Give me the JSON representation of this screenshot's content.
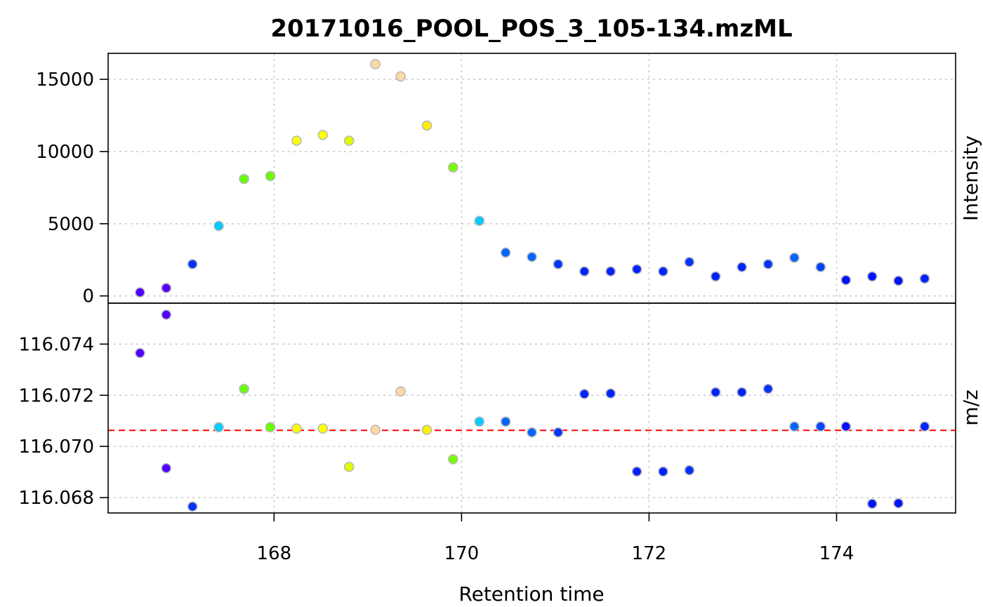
{
  "chart_data": {
    "type": "scatter",
    "title": "20171016_POOL_POS_3_105-134.mzML",
    "xlabel": "Retention time",
    "xlim": [
      166.23,
      175.27
    ],
    "x_ticks": [
      {
        "value": 168,
        "label": "168"
      },
      {
        "value": 170,
        "label": "170"
      },
      {
        "value": 172,
        "label": "172"
      },
      {
        "value": 174,
        "label": "174"
      }
    ],
    "panels": [
      {
        "ylabel": "Intensity",
        "ylim": [
          -500,
          16800
        ],
        "y_ticks": [
          {
            "value": 0,
            "label": "0"
          },
          {
            "value": 5000,
            "label": "5000"
          },
          {
            "value": 10000,
            "label": "10000"
          },
          {
            "value": 15000,
            "label": "15000"
          }
        ]
      },
      {
        "ylabel": "m/z",
        "ylim": [
          116.0674,
          116.0756
        ],
        "y_ticks": [
          {
            "value": 116.068,
            "label": "116.068"
          },
          {
            "value": 116.07,
            "label": "116.070"
          },
          {
            "value": 116.072,
            "label": "116.072"
          },
          {
            "value": 116.074,
            "label": "116.074"
          }
        ],
        "reference_line": {
          "value": 116.07063,
          "color": "#ff0000",
          "style": "dashed"
        }
      }
    ],
    "points": [
      {
        "rt": 166.57,
        "intensity": 250,
        "mz": 116.07365,
        "color": "#5000ff"
      },
      {
        "rt": 166.85,
        "intensity": 550,
        "mz": 116.07515,
        "color": "#5000ff"
      },
      {
        "rt": 166.85,
        "intensity": 550,
        "mz": 116.06915,
        "color": "#5000ff"
      },
      {
        "rt": 167.13,
        "intensity": 2200,
        "mz": 116.06765,
        "color": "#0033ff"
      },
      {
        "rt": 167.41,
        "intensity": 4850,
        "mz": 116.07075,
        "color": "#00ccff"
      },
      {
        "rt": 167.68,
        "intensity": 8100,
        "mz": 116.07225,
        "color": "#66ff00"
      },
      {
        "rt": 167.96,
        "intensity": 8300,
        "mz": 116.07075,
        "color": "#66ff00"
      },
      {
        "rt": 168.24,
        "intensity": 10750,
        "mz": 116.0707,
        "color": "#ffff00"
      },
      {
        "rt": 168.52,
        "intensity": 11150,
        "mz": 116.0707,
        "color": "#ffff00"
      },
      {
        "rt": 168.8,
        "intensity": 10750,
        "mz": 116.0692,
        "color": "#ddff00"
      },
      {
        "rt": 169.08,
        "intensity": 16050,
        "mz": 116.07065,
        "color": "#ffd8a8"
      },
      {
        "rt": 169.35,
        "intensity": 15200,
        "mz": 116.07215,
        "color": "#ffd8a8"
      },
      {
        "rt": 169.63,
        "intensity": 11800,
        "mz": 116.07065,
        "color": "#fff000"
      },
      {
        "rt": 169.91,
        "intensity": 8900,
        "mz": 116.0695,
        "color": "#77ff00"
      },
      {
        "rt": 170.19,
        "intensity": 5200,
        "mz": 116.07097,
        "color": "#00ccff"
      },
      {
        "rt": 170.47,
        "intensity": 3000,
        "mz": 116.07097,
        "color": "#0066ff"
      },
      {
        "rt": 170.75,
        "intensity": 2700,
        "mz": 116.07055,
        "color": "#0066ff"
      },
      {
        "rt": 171.03,
        "intensity": 2200,
        "mz": 116.07055,
        "color": "#0033ff"
      },
      {
        "rt": 171.31,
        "intensity": 1700,
        "mz": 116.07205,
        "color": "#0022ff"
      },
      {
        "rt": 171.59,
        "intensity": 1700,
        "mz": 116.07207,
        "color": "#0022ff"
      },
      {
        "rt": 171.87,
        "intensity": 1850,
        "mz": 116.06902,
        "color": "#0022ff"
      },
      {
        "rt": 172.15,
        "intensity": 1700,
        "mz": 116.06902,
        "color": "#0022ff"
      },
      {
        "rt": 172.43,
        "intensity": 2350,
        "mz": 116.06907,
        "color": "#0033ff"
      },
      {
        "rt": 172.71,
        "intensity": 1350,
        "mz": 116.07212,
        "color": "#0022ff"
      },
      {
        "rt": 172.99,
        "intensity": 2000,
        "mz": 116.07212,
        "color": "#0022ff"
      },
      {
        "rt": 173.27,
        "intensity": 2200,
        "mz": 116.07225,
        "color": "#0033ff"
      },
      {
        "rt": 173.55,
        "intensity": 2650,
        "mz": 116.07078,
        "color": "#0066ff"
      },
      {
        "rt": 173.83,
        "intensity": 2000,
        "mz": 116.07078,
        "color": "#0044ff"
      },
      {
        "rt": 174.1,
        "intensity": 1100,
        "mz": 116.07078,
        "color": "#0011ff"
      },
      {
        "rt": 174.38,
        "intensity": 1350,
        "mz": 116.06776,
        "color": "#0011ff"
      },
      {
        "rt": 174.66,
        "intensity": 1050,
        "mz": 116.06778,
        "color": "#0011ff"
      },
      {
        "rt": 174.94,
        "intensity": 1200,
        "mz": 116.07078,
        "color": "#0022ff"
      }
    ]
  }
}
